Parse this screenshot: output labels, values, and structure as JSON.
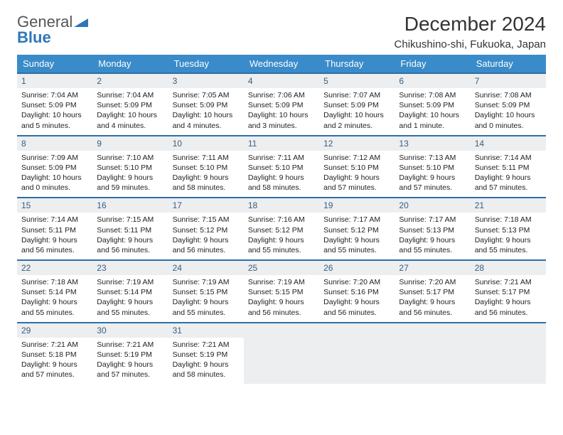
{
  "logo": {
    "word1": "General",
    "word2": "Blue",
    "triangle_color": "#2f76b8"
  },
  "title": "December 2024",
  "location": "Chikushino-shi, Fukuoka, Japan",
  "colors": {
    "header_bg": "#3a8bc9",
    "header_text": "#ffffff",
    "row_border": "#2f6fa6",
    "daynum_bg": "#eceef0",
    "daynum_text": "#3a5d7d",
    "body_text": "#222222",
    "page_bg": "#ffffff"
  },
  "weekdays": [
    "Sunday",
    "Monday",
    "Tuesday",
    "Wednesday",
    "Thursday",
    "Friday",
    "Saturday"
  ],
  "weeks": [
    [
      {
        "n": "1",
        "sunrise": "Sunrise: 7:04 AM",
        "sunset": "Sunset: 5:09 PM",
        "daylight": "Daylight: 10 hours and 5 minutes."
      },
      {
        "n": "2",
        "sunrise": "Sunrise: 7:04 AM",
        "sunset": "Sunset: 5:09 PM",
        "daylight": "Daylight: 10 hours and 4 minutes."
      },
      {
        "n": "3",
        "sunrise": "Sunrise: 7:05 AM",
        "sunset": "Sunset: 5:09 PM",
        "daylight": "Daylight: 10 hours and 4 minutes."
      },
      {
        "n": "4",
        "sunrise": "Sunrise: 7:06 AM",
        "sunset": "Sunset: 5:09 PM",
        "daylight": "Daylight: 10 hours and 3 minutes."
      },
      {
        "n": "5",
        "sunrise": "Sunrise: 7:07 AM",
        "sunset": "Sunset: 5:09 PM",
        "daylight": "Daylight: 10 hours and 2 minutes."
      },
      {
        "n": "6",
        "sunrise": "Sunrise: 7:08 AM",
        "sunset": "Sunset: 5:09 PM",
        "daylight": "Daylight: 10 hours and 1 minute."
      },
      {
        "n": "7",
        "sunrise": "Sunrise: 7:08 AM",
        "sunset": "Sunset: 5:09 PM",
        "daylight": "Daylight: 10 hours and 0 minutes."
      }
    ],
    [
      {
        "n": "8",
        "sunrise": "Sunrise: 7:09 AM",
        "sunset": "Sunset: 5:09 PM",
        "daylight": "Daylight: 10 hours and 0 minutes."
      },
      {
        "n": "9",
        "sunrise": "Sunrise: 7:10 AM",
        "sunset": "Sunset: 5:10 PM",
        "daylight": "Daylight: 9 hours and 59 minutes."
      },
      {
        "n": "10",
        "sunrise": "Sunrise: 7:11 AM",
        "sunset": "Sunset: 5:10 PM",
        "daylight": "Daylight: 9 hours and 58 minutes."
      },
      {
        "n": "11",
        "sunrise": "Sunrise: 7:11 AM",
        "sunset": "Sunset: 5:10 PM",
        "daylight": "Daylight: 9 hours and 58 minutes."
      },
      {
        "n": "12",
        "sunrise": "Sunrise: 7:12 AM",
        "sunset": "Sunset: 5:10 PM",
        "daylight": "Daylight: 9 hours and 57 minutes."
      },
      {
        "n": "13",
        "sunrise": "Sunrise: 7:13 AM",
        "sunset": "Sunset: 5:10 PM",
        "daylight": "Daylight: 9 hours and 57 minutes."
      },
      {
        "n": "14",
        "sunrise": "Sunrise: 7:14 AM",
        "sunset": "Sunset: 5:11 PM",
        "daylight": "Daylight: 9 hours and 57 minutes."
      }
    ],
    [
      {
        "n": "15",
        "sunrise": "Sunrise: 7:14 AM",
        "sunset": "Sunset: 5:11 PM",
        "daylight": "Daylight: 9 hours and 56 minutes."
      },
      {
        "n": "16",
        "sunrise": "Sunrise: 7:15 AM",
        "sunset": "Sunset: 5:11 PM",
        "daylight": "Daylight: 9 hours and 56 minutes."
      },
      {
        "n": "17",
        "sunrise": "Sunrise: 7:15 AM",
        "sunset": "Sunset: 5:12 PM",
        "daylight": "Daylight: 9 hours and 56 minutes."
      },
      {
        "n": "18",
        "sunrise": "Sunrise: 7:16 AM",
        "sunset": "Sunset: 5:12 PM",
        "daylight": "Daylight: 9 hours and 55 minutes."
      },
      {
        "n": "19",
        "sunrise": "Sunrise: 7:17 AM",
        "sunset": "Sunset: 5:12 PM",
        "daylight": "Daylight: 9 hours and 55 minutes."
      },
      {
        "n": "20",
        "sunrise": "Sunrise: 7:17 AM",
        "sunset": "Sunset: 5:13 PM",
        "daylight": "Daylight: 9 hours and 55 minutes."
      },
      {
        "n": "21",
        "sunrise": "Sunrise: 7:18 AM",
        "sunset": "Sunset: 5:13 PM",
        "daylight": "Daylight: 9 hours and 55 minutes."
      }
    ],
    [
      {
        "n": "22",
        "sunrise": "Sunrise: 7:18 AM",
        "sunset": "Sunset: 5:14 PM",
        "daylight": "Daylight: 9 hours and 55 minutes."
      },
      {
        "n": "23",
        "sunrise": "Sunrise: 7:19 AM",
        "sunset": "Sunset: 5:14 PM",
        "daylight": "Daylight: 9 hours and 55 minutes."
      },
      {
        "n": "24",
        "sunrise": "Sunrise: 7:19 AM",
        "sunset": "Sunset: 5:15 PM",
        "daylight": "Daylight: 9 hours and 55 minutes."
      },
      {
        "n": "25",
        "sunrise": "Sunrise: 7:19 AM",
        "sunset": "Sunset: 5:15 PM",
        "daylight": "Daylight: 9 hours and 56 minutes."
      },
      {
        "n": "26",
        "sunrise": "Sunrise: 7:20 AM",
        "sunset": "Sunset: 5:16 PM",
        "daylight": "Daylight: 9 hours and 56 minutes."
      },
      {
        "n": "27",
        "sunrise": "Sunrise: 7:20 AM",
        "sunset": "Sunset: 5:17 PM",
        "daylight": "Daylight: 9 hours and 56 minutes."
      },
      {
        "n": "28",
        "sunrise": "Sunrise: 7:21 AM",
        "sunset": "Sunset: 5:17 PM",
        "daylight": "Daylight: 9 hours and 56 minutes."
      }
    ],
    [
      {
        "n": "29",
        "sunrise": "Sunrise: 7:21 AM",
        "sunset": "Sunset: 5:18 PM",
        "daylight": "Daylight: 9 hours and 57 minutes."
      },
      {
        "n": "30",
        "sunrise": "Sunrise: 7:21 AM",
        "sunset": "Sunset: 5:19 PM",
        "daylight": "Daylight: 9 hours and 57 minutes."
      },
      {
        "n": "31",
        "sunrise": "Sunrise: 7:21 AM",
        "sunset": "Sunset: 5:19 PM",
        "daylight": "Daylight: 9 hours and 58 minutes."
      },
      null,
      null,
      null,
      null
    ]
  ]
}
